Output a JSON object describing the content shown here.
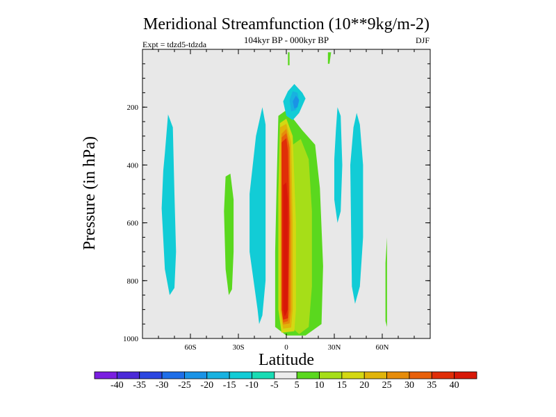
{
  "chart_data": {
    "type": "filled-contour",
    "title": "Meridional Streamfunction (10**9kg/m-2)",
    "subtitle": "104kyr BP - 000kyr BP",
    "left_string": "Expt = tdzd5-tdzda",
    "right_string": "DJF",
    "xlabel": "Latitude",
    "ylabel": "Pressure (in hPa)",
    "xlim": [
      -90,
      90
    ],
    "ylim": [
      1000,
      0
    ],
    "x_ticks": [
      {
        "value": -60,
        "label": "60S"
      },
      {
        "value": -30,
        "label": "30S"
      },
      {
        "value": 0,
        "label": "0"
      },
      {
        "value": 30,
        "label": "30N"
      },
      {
        "value": 60,
        "label": "60N"
      }
    ],
    "y_ticks": [
      {
        "value": 200,
        "label": "200"
      },
      {
        "value": 400,
        "label": "400"
      },
      {
        "value": 600,
        "label": "600"
      },
      {
        "value": 800,
        "label": "800"
      },
      {
        "value": 1000,
        "label": "1000"
      }
    ],
    "background_color": "#e8e8e8",
    "colorbar": {
      "levels": [
        -40,
        -35,
        -30,
        -25,
        -20,
        -15,
        -10,
        -5,
        5,
        10,
        15,
        20,
        25,
        30,
        35,
        40
      ],
      "labels": [
        "-40",
        "-35",
        "-30",
        "-25",
        "-20",
        "-15",
        "-10",
        "-5",
        "5",
        "10",
        "15",
        "20",
        "25",
        "30",
        "35",
        "40"
      ],
      "colors": [
        "#7a1ee0",
        "#4b2ad8",
        "#2b46e0",
        "#1e6ee8",
        "#1a93e6",
        "#18b2e0",
        "#12ccd6",
        "#18dcb4",
        "#ececec",
        "#5ad81e",
        "#a6de18",
        "#d4d812",
        "#e0b40a",
        "#e68c0a",
        "#e8600a",
        "#e02e08",
        "#d81808"
      ]
    },
    "regions": [
      {
        "name": "cell-60s-teal",
        "level": -10,
        "points": [
          [
            -76,
            360
          ],
          [
            -74,
            225
          ],
          [
            -71,
            270
          ],
          [
            -70,
            500
          ],
          [
            -69,
            700
          ],
          [
            -70,
            825
          ],
          [
            -73,
            850
          ],
          [
            -76,
            760
          ],
          [
            -78,
            550
          ],
          [
            -77,
            420
          ]
        ]
      },
      {
        "name": "cell-20s-teal",
        "level": -10,
        "points": [
          [
            -18,
            900
          ],
          [
            -23,
            700
          ],
          [
            -23,
            500
          ],
          [
            -19,
            300
          ],
          [
            -15,
            200
          ],
          [
            -13,
            260
          ],
          [
            -13,
            500
          ],
          [
            -13,
            800
          ],
          [
            -15,
            920
          ],
          [
            -17,
            950
          ]
        ]
      },
      {
        "name": "cell-35s-green",
        "level": 5,
        "points": [
          [
            -38,
            440
          ],
          [
            -35,
            430
          ],
          [
            -33,
            520
          ],
          [
            -33,
            700
          ],
          [
            -34,
            830
          ],
          [
            -36,
            850
          ],
          [
            -38,
            760
          ],
          [
            -39,
            560
          ]
        ]
      },
      {
        "name": "cell-10n-green",
        "level": 5,
        "points": [
          [
            -5,
            230
          ],
          [
            0,
            210
          ],
          [
            10,
            280
          ],
          [
            18,
            330
          ],
          [
            21,
            480
          ],
          [
            23,
            750
          ],
          [
            22,
            950
          ],
          [
            12,
            990
          ],
          [
            0,
            990
          ],
          [
            -7,
            960
          ],
          [
            -7,
            700
          ],
          [
            -6,
            450
          ]
        ]
      },
      {
        "name": "cell-10n-lime",
        "level": 10,
        "points": [
          [
            4,
            330
          ],
          [
            9,
            310
          ],
          [
            14,
            380
          ],
          [
            16,
            560
          ],
          [
            16,
            820
          ],
          [
            14,
            960
          ],
          [
            8,
            985
          ],
          [
            3,
            960
          ]
        ]
      },
      {
        "name": "cell-0-yellow",
        "level": 15,
        "points": [
          [
            -4,
            255
          ],
          [
            0,
            240
          ],
          [
            4,
            300
          ],
          [
            6,
            600
          ],
          [
            6,
            900
          ],
          [
            5,
            975
          ],
          [
            -3,
            980
          ],
          [
            -5,
            900
          ],
          [
            -5,
            500
          ]
        ]
      },
      {
        "name": "cell-0-gold",
        "level": 20,
        "points": [
          [
            -4,
            270
          ],
          [
            0,
            258
          ],
          [
            3,
            320
          ],
          [
            4,
            600
          ],
          [
            4,
            900
          ],
          [
            3,
            962
          ],
          [
            -2,
            966
          ],
          [
            -4,
            900
          ],
          [
            -4,
            500
          ]
        ]
      },
      {
        "name": "cell-0-orange",
        "level": 25,
        "points": [
          [
            -3,
            292
          ],
          [
            0,
            275
          ],
          [
            2,
            330
          ],
          [
            3,
            600
          ],
          [
            3,
            900
          ],
          [
            2,
            948
          ],
          [
            -2,
            952
          ],
          [
            -3,
            900
          ],
          [
            -3,
            500
          ]
        ]
      },
      {
        "name": "cell-0-darkorange",
        "level": 30,
        "points": [
          [
            -3,
            305
          ],
          [
            0,
            290
          ],
          [
            2,
            340
          ],
          [
            2,
            600
          ],
          [
            2,
            900
          ],
          [
            1,
            940
          ],
          [
            -2,
            945
          ],
          [
            -3,
            900
          ],
          [
            -3,
            500
          ]
        ]
      },
      {
        "name": "cell-0-redorange",
        "level": 35,
        "points": [
          [
            -3,
            322
          ],
          [
            0,
            307
          ],
          [
            1,
            350
          ],
          [
            2,
            600
          ],
          [
            1,
            900
          ],
          [
            1,
            930
          ],
          [
            -2,
            935
          ],
          [
            -3,
            900
          ],
          [
            -3,
            500
          ]
        ]
      },
      {
        "name": "cell-0-red",
        "level": 40,
        "points": [
          [
            -2,
            470
          ],
          [
            0,
            460
          ],
          [
            1,
            520
          ],
          [
            1,
            900
          ],
          [
            -1,
            925
          ],
          [
            -2,
            900
          ],
          [
            -2,
            600
          ]
        ]
      },
      {
        "name": "cell-5n-top-teal",
        "level": -10,
        "points": [
          [
            -2,
            180
          ],
          [
            1,
            145
          ],
          [
            5,
            120
          ],
          [
            10,
            150
          ],
          [
            12,
            170
          ],
          [
            8,
            220
          ],
          [
            4,
            245
          ],
          [
            0,
            230
          ]
        ]
      },
      {
        "name": "cell-5n-top-light",
        "level": -15,
        "points": [
          [
            2,
            175
          ],
          [
            4,
            145
          ],
          [
            7,
            150
          ],
          [
            8,
            180
          ],
          [
            6,
            210
          ],
          [
            3,
            215
          ]
        ]
      },
      {
        "name": "cell-8n-blue",
        "level": -20,
        "points": [
          [
            4,
            180
          ],
          [
            6,
            160
          ],
          [
            8,
            175
          ],
          [
            7,
            200
          ],
          [
            5,
            205
          ]
        ]
      },
      {
        "name": "cell-0-strip-green",
        "level": 5,
        "points": [
          [
            1,
            10
          ],
          [
            2,
            10
          ],
          [
            2,
            55
          ],
          [
            1,
            55
          ]
        ]
      },
      {
        "name": "cell-27n-strip-green",
        "level": 5,
        "points": [
          [
            26,
            10
          ],
          [
            28,
            10
          ],
          [
            27,
            50
          ],
          [
            26,
            50
          ]
        ]
      },
      {
        "name": "cell-30n-teal",
        "level": -10,
        "points": [
          [
            31,
            280
          ],
          [
            32,
            200
          ],
          [
            34,
            230
          ],
          [
            35,
            400
          ],
          [
            34,
            560
          ],
          [
            32,
            600
          ],
          [
            30,
            520
          ],
          [
            30,
            380
          ]
        ]
      },
      {
        "name": "cell-45n-teal",
        "level": -10,
        "points": [
          [
            40,
            400
          ],
          [
            42,
            270
          ],
          [
            44,
            220
          ],
          [
            46,
            260
          ],
          [
            48,
            400
          ],
          [
            48,
            650
          ],
          [
            46,
            820
          ],
          [
            43,
            880
          ],
          [
            41,
            820
          ]
        ]
      },
      {
        "name": "cell-60n-green",
        "level": 5,
        "points": [
          [
            62,
            940
          ],
          [
            62,
            740
          ],
          [
            63,
            650
          ],
          [
            63,
            840
          ],
          [
            63,
            960
          ]
        ]
      }
    ]
  }
}
